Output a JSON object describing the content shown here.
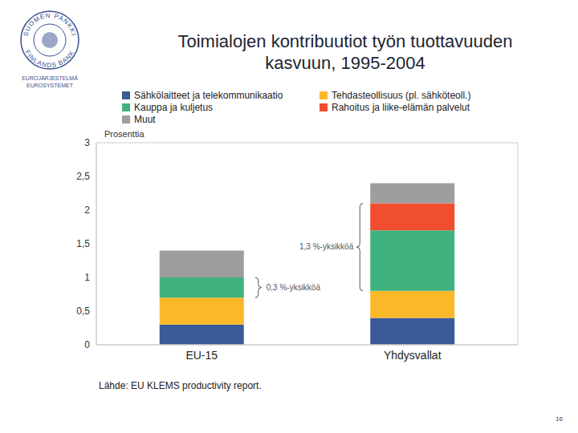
{
  "chart_data": {
    "type": "bar",
    "stacked": true,
    "title": "Toimialojen kontribuutiot työn tuottavuuden kasvuun, 1995-2004",
    "y_label": "Prosenttia",
    "categories": [
      "EU-15",
      "Yhdysvallat"
    ],
    "series": [
      {
        "name": "Sähkölaitteet ja telekommunikaatio",
        "color": "#3a5a98",
        "values": [
          0.3,
          0.4
        ]
      },
      {
        "name": "Tehdasteollisuus (pl. sähköteoll.)",
        "color": "#fbb829",
        "values": [
          0.4,
          0.4
        ]
      },
      {
        "name": "Kauppa ja kuljetus",
        "color": "#3fb27f",
        "values": [
          0.3,
          0.9
        ]
      },
      {
        "name": "Rahoitus ja liike-elämän palvelut",
        "color": "#f04e2e",
        "values": [
          0,
          0.4
        ]
      },
      {
        "name": "Muut",
        "color": "#9e9e9e",
        "values": [
          0.4,
          0.3
        ]
      }
    ],
    "ylim": [
      0,
      3
    ],
    "yticks": [
      0,
      {
        "value": 0.5,
        "label": "0,5"
      },
      1,
      {
        "value": 1.5,
        "label": "1,5"
      },
      2,
      {
        "value": 2.5,
        "label": "2,5"
      },
      3
    ],
    "grid": false,
    "legend": "top",
    "annotations": [
      {
        "text": "0,3 %-yksikköä",
        "category": "EU-15",
        "series": [
          "Kauppa ja kuljetus"
        ]
      },
      {
        "text": "1,3 %-yksikköä",
        "category": "Yhdysvallat",
        "series": [
          "Kauppa ja kuljetus",
          "Rahoitus ja liike-elämän palvelut"
        ]
      }
    ],
    "source": "Lähde: EU KLEMS productivity report.",
    "page_number": "16",
    "logo": {
      "top": "SUOMEN PANKKI",
      "bottom": "FINLANDS BANK",
      "line1": "EUROJÄRJESTELMÄ",
      "line2": "EUROSYSTEMET"
    }
  }
}
